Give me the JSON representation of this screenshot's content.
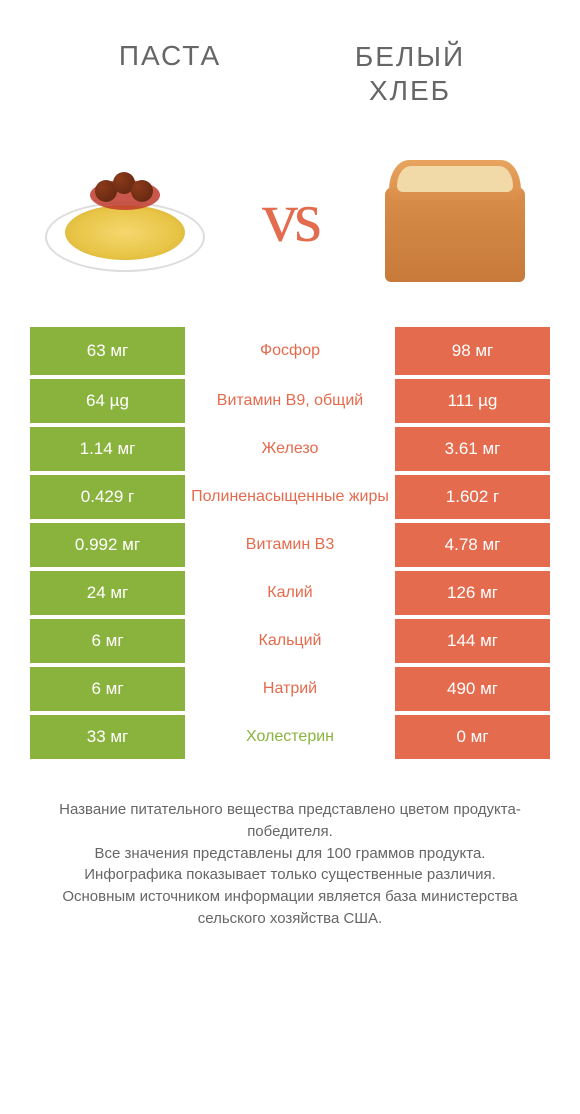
{
  "colors": {
    "left": "#8ab33e",
    "right": "#e46b4d",
    "text_muted": "#666666"
  },
  "left_title": "ПАСТА",
  "right_title": "БЕЛЫЙ\nХЛЕБ",
  "vs_label": "vs",
  "rows": [
    {
      "left": "63 мг",
      "label": "Фосфор",
      "right": "98 мг",
      "winner": "right"
    },
    {
      "left": "64 µg",
      "label": "Витамин B9, общий",
      "right": "111 µg",
      "winner": "right"
    },
    {
      "left": "1.14 мг",
      "label": "Железо",
      "right": "3.61 мг",
      "winner": "right"
    },
    {
      "left": "0.429 г",
      "label": "Полиненасыщенные жиры",
      "right": "1.602 г",
      "winner": "right"
    },
    {
      "left": "0.992 мг",
      "label": "Витамин B3",
      "right": "4.78 мг",
      "winner": "right"
    },
    {
      "left": "24 мг",
      "label": "Калий",
      "right": "126 мг",
      "winner": "right"
    },
    {
      "left": "6 мг",
      "label": "Кальций",
      "right": "144 мг",
      "winner": "right"
    },
    {
      "left": "6 мг",
      "label": "Натрий",
      "right": "490 мг",
      "winner": "right"
    },
    {
      "left": "33 мг",
      "label": "Холестерин",
      "right": "0 мг",
      "winner": "left"
    }
  ],
  "footer": "Название питательного вещества представлено цветом продукта-победителя.\nВсе значения представлены для 100 граммов продукта.\nИнфографика показывает только существенные различия.\nОсновным источником информации является база министерства сельского хозяйства США."
}
